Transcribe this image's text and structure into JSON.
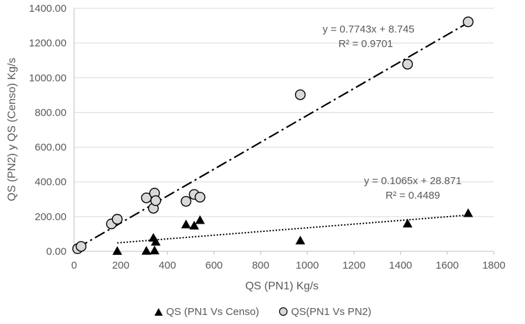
{
  "chart_data": {
    "type": "scatter",
    "title": "",
    "xlabel": "QS (PN1) Kg/s",
    "ylabel": "QS (PN2) y  QS (Censo)  Kg/s",
    "xlim": [
      0,
      1800
    ],
    "ylim": [
      0,
      1400
    ],
    "x_ticks": [
      "0",
      "200",
      "400",
      "600",
      "800",
      "1000",
      "1200",
      "1400",
      "1600",
      "1800"
    ],
    "y_ticks": [
      "0.00",
      "200.00",
      "400.00",
      "600.00",
      "800.00",
      "1000.00",
      "1200.00",
      "1400.00"
    ],
    "grid": "horizontal",
    "legend_position": "bottom",
    "series": [
      {
        "name": "QS (PN1 Vs Censo)",
        "marker": "triangle",
        "color": "#000000",
        "points": [
          [
            185,
            2
          ],
          [
            310,
            3
          ],
          [
            345,
            5
          ],
          [
            340,
            78
          ],
          [
            350,
            55
          ],
          [
            480,
            155
          ],
          [
            515,
            148
          ],
          [
            540,
            180
          ],
          [
            970,
            62
          ],
          [
            1430,
            160
          ],
          [
            1690,
            220
          ]
        ],
        "trendline": {
          "style": "dotted",
          "slope": 0.1065,
          "intercept": 28.871,
          "x_range": [
            185,
            1690
          ],
          "equation": "y = 0.1065x + 28.871",
          "r2": "R² = 0.4489"
        }
      },
      {
        "name": "QS(PN1 Vs PN2)",
        "marker": "circle",
        "color": "#d9d9d9",
        "points": [
          [
            15,
            15
          ],
          [
            30,
            28
          ],
          [
            160,
            158
          ],
          [
            185,
            185
          ],
          [
            310,
            308
          ],
          [
            340,
            248
          ],
          [
            345,
            335
          ],
          [
            350,
            292
          ],
          [
            480,
            288
          ],
          [
            515,
            328
          ],
          [
            540,
            312
          ],
          [
            970,
            902
          ],
          [
            1430,
            1078
          ],
          [
            1690,
            1322
          ]
        ],
        "trendline": {
          "style": "dash-dot",
          "slope": 0.7743,
          "intercept": 8.745,
          "x_range": [
            15,
            1690
          ],
          "equation": "y = 0.7743x + 8.745",
          "r2": "R² = 0.9701"
        }
      }
    ]
  }
}
